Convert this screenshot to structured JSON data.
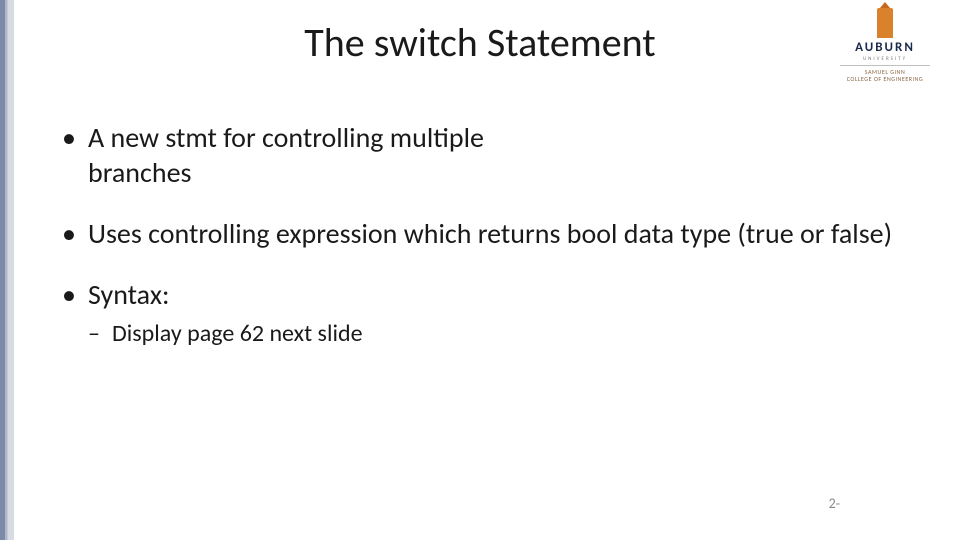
{
  "title": "The switch Statement",
  "logo": {
    "word": "AUBURN",
    "sub1": "UNIVERSITY",
    "sub2_line1": "SAMUEL GINN",
    "sub2_line2": "COLLEGE OF ENGINEERING"
  },
  "bullets": [
    {
      "text": "A new stmt for controlling multiple branches"
    },
    {
      "text": "Uses controlling expression which returns bool data type (true or false)"
    },
    {
      "text": "Syntax:",
      "children": [
        {
          "text": "Display page 62 next slide"
        }
      ]
    }
  ],
  "page_number": "2-",
  "colors": {
    "text": "#1a1a1a",
    "page_num": "#888888",
    "accent_orange": "#d9822b",
    "accent_navy": "#1a2a4a",
    "left_bar_dark": "#7a8aa8",
    "left_bar_light": "#d6dbe4",
    "background": "#ffffff"
  },
  "typography": {
    "title_fontsize": 40,
    "bullet_fontsize": 28,
    "sub_bullet_fontsize": 24,
    "pagenum_fontsize": 14,
    "font_family": "Calibri"
  },
  "layout": {
    "slide_width": 960,
    "slide_height": 540,
    "left_bar_width": 14
  }
}
